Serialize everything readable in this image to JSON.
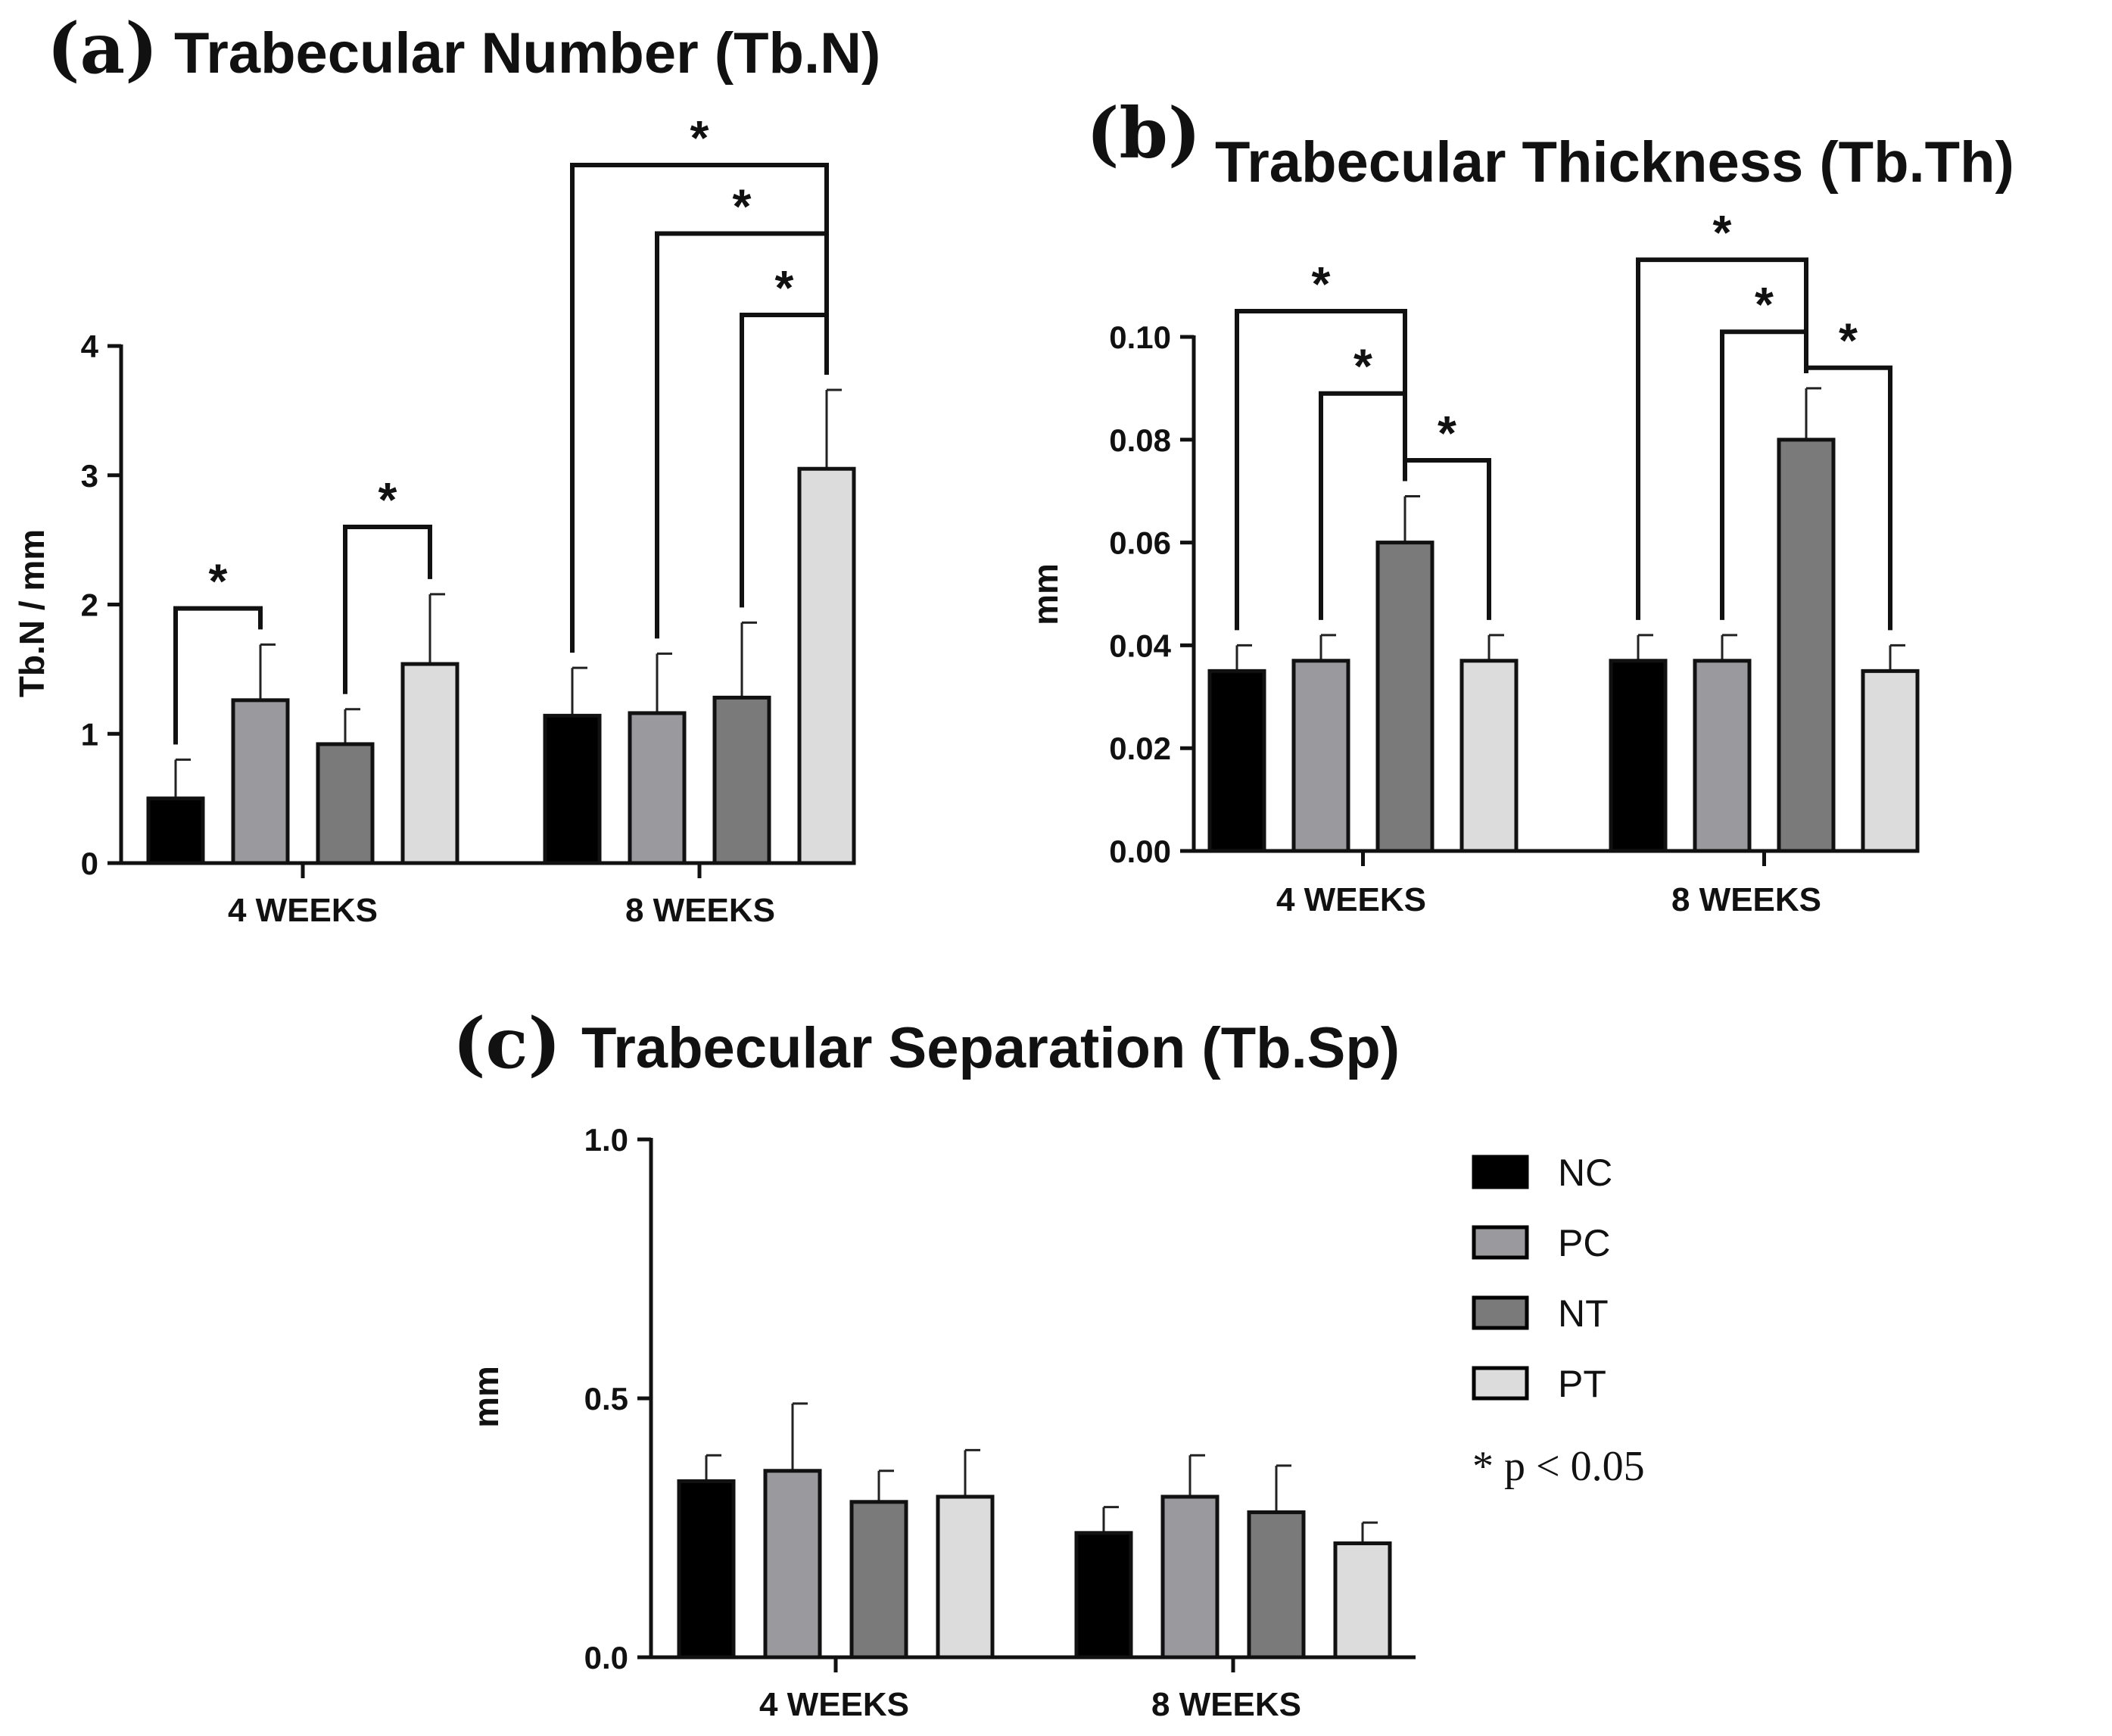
{
  "groups": [
    {
      "name": "NC",
      "color": "#000000"
    },
    {
      "name": "PC",
      "color": "#9a9a9e"
    },
    {
      "name": "NT",
      "color": "#7a7a7a"
    },
    {
      "name": "PT",
      "color": "#dcdcdc"
    }
  ],
  "legend": {
    "items": [
      "NC",
      "PC",
      "NT",
      "PT"
    ],
    "note": "* p < 0.05"
  },
  "chart_data": [
    {
      "id": "a",
      "letter": "(a)",
      "type": "bar",
      "title": "Trabecular Number (Tb.N)",
      "ylabel": "Tb.N / mm",
      "ylim": [
        0,
        4
      ],
      "yticks": [
        "0",
        "1",
        "2",
        "3",
        "4"
      ],
      "categories": [
        "4 WEEKS",
        "8 WEEKS"
      ],
      "series": [
        {
          "name": "NC",
          "values": [
            0.5,
            1.14
          ],
          "errors": [
            0.3,
            0.37
          ]
        },
        {
          "name": "PC",
          "values": [
            1.26,
            1.16
          ],
          "errors": [
            0.43,
            0.46
          ]
        },
        {
          "name": "NT",
          "values": [
            0.92,
            1.28
          ],
          "errors": [
            0.27,
            0.58
          ]
        },
        {
          "name": "PT",
          "values": [
            1.54,
            3.05
          ],
          "errors": [
            0.54,
            0.61
          ]
        }
      ],
      "significance": [
        {
          "category": 0,
          "from": 0,
          "to": 1,
          "label": "*",
          "level": 1.97
        },
        {
          "category": 0,
          "from": 2,
          "to": 3,
          "label": "*",
          "level": 2.6
        },
        {
          "category": 1,
          "from": 2,
          "to": 3,
          "label": "*",
          "level": 4.24
        },
        {
          "category": 1,
          "from": 1,
          "to": 3,
          "label": "*",
          "level": 4.87
        },
        {
          "category": 1,
          "from": 0,
          "to": 3,
          "label": "*",
          "level": 5.4
        }
      ]
    },
    {
      "id": "b",
      "letter": "(b)",
      "type": "bar",
      "title": "Trabecular Thickness (Tb.Th)",
      "ylabel": "mm",
      "ylim": [
        0,
        0.1
      ],
      "yticks": [
        "0.00",
        "0.02",
        "0.04",
        "0.06",
        "0.08",
        "0.10"
      ],
      "categories": [
        "4 WEEKS",
        "8 WEEKS"
      ],
      "series": [
        {
          "name": "NC",
          "values": [
            0.035,
            0.037
          ],
          "errors": [
            0.005,
            0.005
          ]
        },
        {
          "name": "PC",
          "values": [
            0.037,
            0.037
          ],
          "errors": [
            0.005,
            0.005
          ]
        },
        {
          "name": "NT",
          "values": [
            0.06,
            0.08
          ],
          "errors": [
            0.009,
            0.01
          ]
        },
        {
          "name": "PT",
          "values": [
            0.037,
            0.035
          ],
          "errors": [
            0.005,
            0.005
          ]
        }
      ],
      "significance": [
        {
          "category": 0,
          "from": 0,
          "to": 2,
          "label": "*",
          "level": 0.105
        },
        {
          "category": 0,
          "from": 1,
          "to": 2,
          "label": "*",
          "level": 0.089
        },
        {
          "category": 0,
          "from": 2,
          "to": 3,
          "label": "*",
          "level": 0.076
        },
        {
          "category": 1,
          "from": 0,
          "to": 2,
          "label": "*",
          "level": 0.115
        },
        {
          "category": 1,
          "from": 1,
          "to": 2,
          "label": "*",
          "level": 0.101
        },
        {
          "category": 1,
          "from": 2,
          "to": 3,
          "label": "*",
          "level": 0.094
        }
      ]
    },
    {
      "id": "c",
      "letter": "(c)",
      "type": "bar",
      "title": "Trabecular Separation (Tb.Sp)",
      "ylabel": "mm",
      "ylim": [
        0,
        1
      ],
      "yticks": [
        "0.0",
        "0.5",
        "1.0"
      ],
      "categories": [
        "4 WEEKS",
        "8 WEEKS"
      ],
      "series": [
        {
          "name": "NC",
          "values": [
            0.34,
            0.24
          ],
          "errors": [
            0.05,
            0.05
          ]
        },
        {
          "name": "PC",
          "values": [
            0.36,
            0.31
          ],
          "errors": [
            0.13,
            0.08
          ]
        },
        {
          "name": "NT",
          "values": [
            0.3,
            0.28
          ],
          "errors": [
            0.06,
            0.09
          ]
        },
        {
          "name": "PT",
          "values": [
            0.31,
            0.22
          ],
          "errors": [
            0.09,
            0.04
          ]
        }
      ],
      "significance": []
    }
  ]
}
